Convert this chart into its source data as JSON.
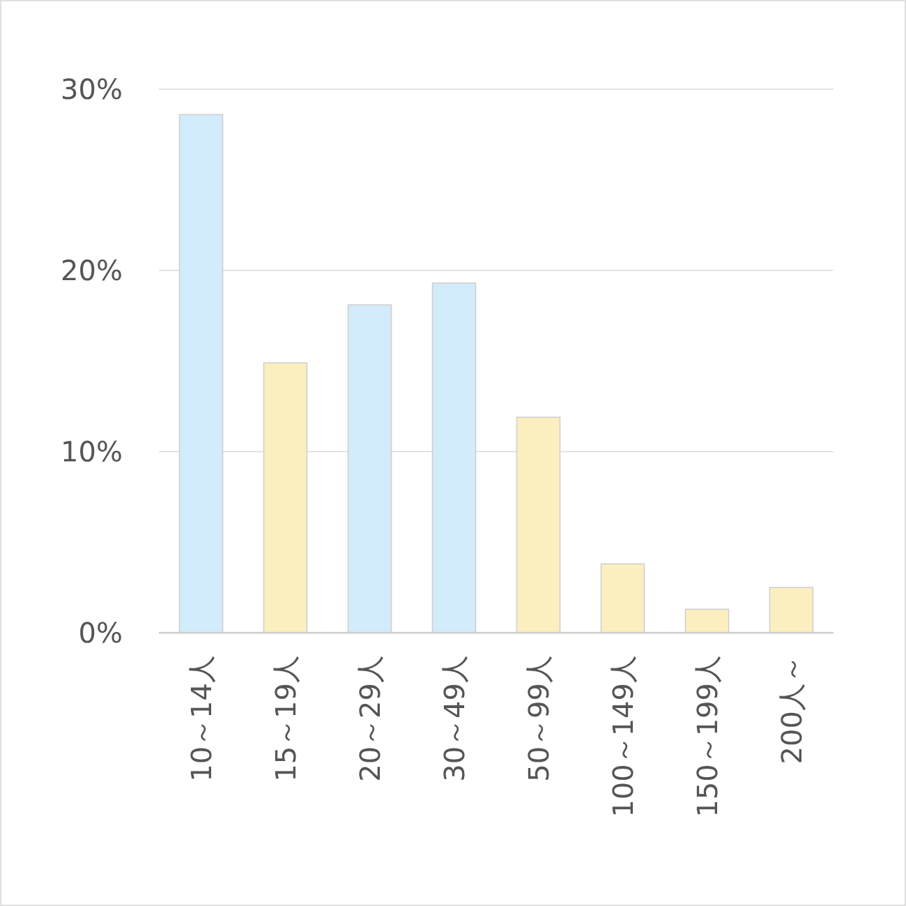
{
  "chart_data": {
    "type": "bar",
    "categories": [
      "10～14人",
      "15～19人",
      "20～29人",
      "30～49人",
      "50～99人",
      "100～149人",
      "150～199人",
      "200人～"
    ],
    "values": [
      28.6,
      14.9,
      18.1,
      19.3,
      11.9,
      3.8,
      1.3,
      2.5
    ],
    "colors": [
      "#d3ecfb",
      "#fcefbf",
      "#d3ecfb",
      "#d3ecfb",
      "#fcefbf",
      "#fcefbf",
      "#fcefbf",
      "#fcefbf"
    ],
    "ylim": [
      0,
      30
    ],
    "yticks": [
      {
        "value": 0,
        "label": "0%"
      },
      {
        "value": 10,
        "label": "10%"
      },
      {
        "value": 20,
        "label": "20%"
      },
      {
        "value": 30,
        "label": "30%"
      }
    ],
    "grid": "y"
  }
}
